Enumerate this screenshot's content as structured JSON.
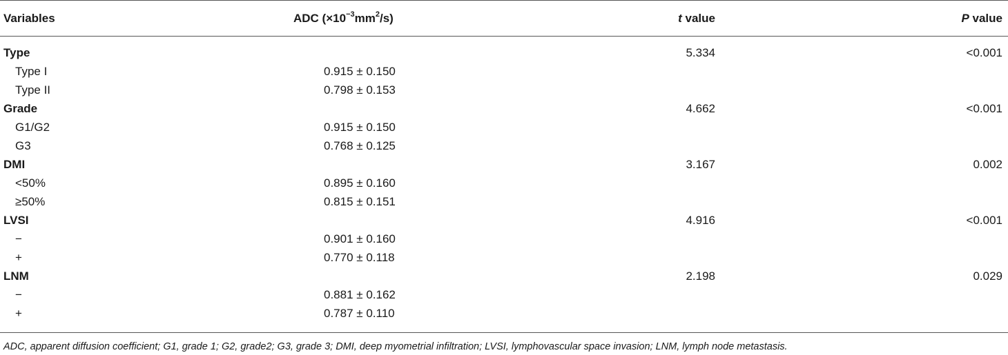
{
  "header": {
    "variables": "Variables",
    "adc_prefix": "ADC (×10",
    "adc_exp": "−3",
    "adc_mid": "mm",
    "adc_exp2": "2",
    "adc_suffix": "/s)",
    "t_italic": "t",
    "t_rest": " value",
    "p_italic": "P",
    "p_rest": " value"
  },
  "rows": [
    {
      "kind": "group",
      "label": "Type",
      "t": "5.334",
      "p": "<0.001"
    },
    {
      "kind": "sub",
      "label": "Type I",
      "adc": "0.915 ± 0.150"
    },
    {
      "kind": "sub",
      "label": "Type II",
      "adc": "0.798 ± 0.153"
    },
    {
      "kind": "group",
      "label": "Grade",
      "t": "4.662",
      "p": "<0.001"
    },
    {
      "kind": "sub",
      "label": "G1/G2",
      "adc": "0.915 ± 0.150"
    },
    {
      "kind": "sub",
      "label": "G3",
      "adc": "0.768 ± 0.125"
    },
    {
      "kind": "group",
      "label": "DMI",
      "t": "3.167",
      "p": "0.002"
    },
    {
      "kind": "sub",
      "label": "<50%",
      "adc": "0.895 ± 0.160"
    },
    {
      "kind": "sub",
      "label": "≥50%",
      "adc": "0.815 ± 0.151"
    },
    {
      "kind": "group",
      "label": "LVSI",
      "t": "4.916",
      "p": "<0.001"
    },
    {
      "kind": "sub",
      "label": "−",
      "adc": "0.901 ± 0.160"
    },
    {
      "kind": "sub",
      "label": "+",
      "adc": "0.770 ± 0.118"
    },
    {
      "kind": "group",
      "label": "LNM",
      "t": "2.198",
      "p": "0.029"
    },
    {
      "kind": "sub",
      "label": "−",
      "adc": "0.881 ± 0.162"
    },
    {
      "kind": "sub",
      "label": "+",
      "adc": "0.787 ± 0.110"
    }
  ],
  "footnote": "ADC, apparent diffusion coefficient; G1, grade 1; G2, grade2; G3, grade 3; DMI, deep myometrial infiltration; LVSI, lymphovascular space invasion; LNM, lymph node metastasis."
}
